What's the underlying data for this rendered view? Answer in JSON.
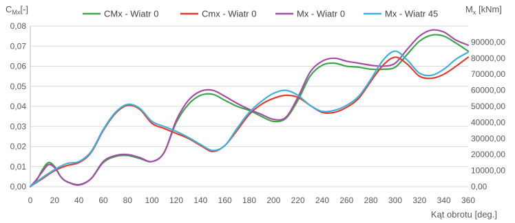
{
  "chart_data": {
    "type": "line",
    "xlabel": "Kąt obrotu [deg.]",
    "ylabel_left": {
      "main": "C",
      "sub": "Mx",
      "unit": "[-]"
    },
    "ylabel_right": {
      "main": "M",
      "sub": "x",
      "unit": " [kNm]"
    },
    "xlim": [
      0,
      360
    ],
    "ylim_left": [
      0,
      0.08
    ],
    "ylim_right": [
      0,
      100000
    ],
    "xticks": [
      0,
      20,
      40,
      60,
      80,
      100,
      120,
      140,
      160,
      180,
      200,
      220,
      240,
      260,
      280,
      300,
      320,
      340,
      360
    ],
    "yticks_left": [
      "0,00",
      "0,01",
      "0,02",
      "0,03",
      "0,04",
      "0,05",
      "0,06",
      "0,07",
      "0,08"
    ],
    "yticks_right": [
      "0,00",
      "10000,00",
      "20000,00",
      "30000,00",
      "40000,00",
      "50000,00",
      "60000,00",
      "70000,00",
      "80000,00",
      "90000,00"
    ],
    "grid": true,
    "legend_position": "top",
    "series": [
      {
        "name": "CMx - Wiatr 0",
        "color": "#3aa54a",
        "axis": "left",
        "x": [
          0,
          5,
          10,
          15,
          20,
          25,
          30,
          40,
          50,
          60,
          70,
          80,
          90,
          100,
          110,
          120,
          130,
          140,
          150,
          160,
          170,
          180,
          190,
          200,
          210,
          220,
          230,
          240,
          250,
          260,
          270,
          280,
          290,
          300,
          310,
          320,
          330,
          340,
          350,
          360
        ],
        "y": [
          0,
          0.003,
          0.0085,
          0.012,
          0.01,
          0.005,
          0.0025,
          0.001,
          0.004,
          0.012,
          0.015,
          0.0155,
          0.014,
          0.0125,
          0.017,
          0.032,
          0.041,
          0.0455,
          0.046,
          0.043,
          0.04,
          0.038,
          0.035,
          0.0325,
          0.034,
          0.043,
          0.055,
          0.0605,
          0.0615,
          0.06,
          0.0595,
          0.0585,
          0.0585,
          0.0595,
          0.066,
          0.0725,
          0.0755,
          0.075,
          0.0715,
          0.0675
        ]
      },
      {
        "name": "Cmx - Wiatr 0",
        "color": "#e63b2b",
        "axis": "left",
        "x": [
          0,
          10,
          20,
          30,
          40,
          50,
          60,
          70,
          80,
          90,
          100,
          110,
          120,
          130,
          140,
          150,
          160,
          170,
          180,
          190,
          200,
          210,
          220,
          230,
          240,
          250,
          260,
          270,
          280,
          290,
          300,
          310,
          320,
          330,
          340,
          350,
          360
        ],
        "y": [
          0,
          0.004,
          0.008,
          0.0105,
          0.012,
          0.017,
          0.028,
          0.0365,
          0.0405,
          0.0385,
          0.0315,
          0.029,
          0.0265,
          0.024,
          0.0205,
          0.0175,
          0.0205,
          0.028,
          0.036,
          0.041,
          0.044,
          0.0455,
          0.0445,
          0.0405,
          0.037,
          0.037,
          0.0395,
          0.044,
          0.0525,
          0.0605,
          0.0645,
          0.061,
          0.055,
          0.054,
          0.056,
          0.06,
          0.0645
        ]
      },
      {
        "name": "Mx - Wiatr 0",
        "color": "#a64ca6",
        "axis": "left",
        "x": [
          0,
          5,
          10,
          15,
          20,
          25,
          30,
          40,
          50,
          60,
          70,
          80,
          90,
          100,
          110,
          120,
          130,
          140,
          150,
          160,
          170,
          180,
          190,
          200,
          210,
          220,
          230,
          240,
          250,
          260,
          270,
          280,
          290,
          300,
          310,
          320,
          330,
          340,
          350,
          360
        ],
        "y": [
          0,
          0.0035,
          0.0075,
          0.011,
          0.0095,
          0.005,
          0.0025,
          0.0008,
          0.004,
          0.0125,
          0.0155,
          0.016,
          0.0145,
          0.0125,
          0.017,
          0.033,
          0.043,
          0.0475,
          0.048,
          0.045,
          0.0415,
          0.0385,
          0.036,
          0.0335,
          0.0345,
          0.0445,
          0.057,
          0.0625,
          0.064,
          0.0625,
          0.0615,
          0.0605,
          0.06,
          0.0615,
          0.0685,
          0.075,
          0.078,
          0.077,
          0.073,
          0.0705
        ]
      },
      {
        "name": "Mx - Wiatr 45",
        "color": "#3bb0e0",
        "axis": "left",
        "x": [
          0,
          10,
          20,
          30,
          40,
          50,
          60,
          70,
          80,
          90,
          100,
          110,
          120,
          130,
          140,
          150,
          160,
          170,
          180,
          190,
          200,
          210,
          220,
          230,
          240,
          250,
          260,
          270,
          280,
          290,
          300,
          310,
          320,
          330,
          340,
          350,
          360
        ],
        "y": [
          0,
          0.0045,
          0.0085,
          0.0115,
          0.0125,
          0.0175,
          0.0285,
          0.037,
          0.041,
          0.039,
          0.0325,
          0.03,
          0.0275,
          0.0245,
          0.021,
          0.018,
          0.0205,
          0.029,
          0.037,
          0.0425,
          0.0465,
          0.048,
          0.0455,
          0.0405,
          0.0375,
          0.038,
          0.0405,
          0.045,
          0.0535,
          0.063,
          0.0675,
          0.063,
          0.0565,
          0.0555,
          0.0585,
          0.0635,
          0.067
        ]
      }
    ]
  }
}
